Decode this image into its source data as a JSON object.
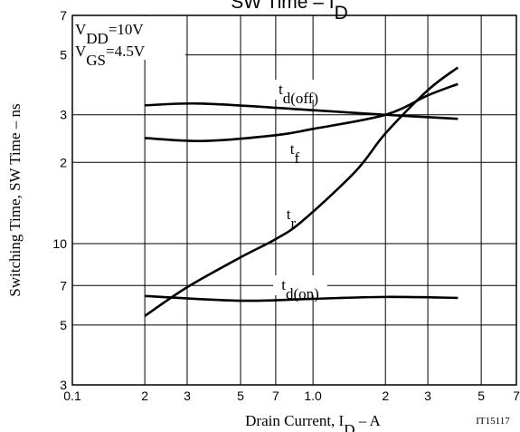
{
  "chart_data": {
    "type": "line",
    "title": [
      "SW Time  –  I",
      "D"
    ],
    "x_label": [
      "Drain Current, I",
      "D",
      "  –  A"
    ],
    "y_label": "Switching Time, SW Time  –  ns",
    "conditions": [
      [
        "V",
        "DD",
        "=10V"
      ],
      [
        "V",
        "GS",
        "=4.5V"
      ]
    ],
    "figure_id": "IT15117",
    "xscale": "log",
    "yscale": "log",
    "grid": true,
    "xlim": [
      0.1,
      7
    ],
    "ylim": [
      3,
      70
    ],
    "xticks": [
      0.1,
      {
        "value": 0.2,
        "label": "2"
      },
      {
        "value": 0.3,
        "label": "3"
      },
      {
        "value": 0.5,
        "label": "5"
      },
      {
        "value": 0.7,
        "label": "7"
      },
      {
        "value": 1,
        "label": "1.0"
      },
      2,
      3,
      5,
      7
    ],
    "yticks": [
      3,
      5,
      7,
      10,
      {
        "value": 20,
        "label": "2"
      },
      {
        "value": 30,
        "label": "3"
      },
      {
        "value": 50,
        "label": "5"
      },
      {
        "value": 70,
        "label": "7"
      }
    ],
    "series": [
      {
        "name": [
          "t",
          "d(off)"
        ],
        "color": "#000000",
        "x": [
          0.2,
          0.35,
          1,
          2,
          4
        ],
        "values": [
          32.5,
          33,
          31.2,
          30,
          29
        ]
      },
      {
        "name": [
          "t",
          "f"
        ],
        "color": "#000000",
        "x": [
          0.2,
          0.35,
          0.7,
          1,
          2,
          3,
          4
        ],
        "values": [
          24.6,
          24,
          25.2,
          26.6,
          30,
          35.4,
          39
        ]
      },
      {
        "name": [
          "t",
          "r"
        ],
        "color": "#000000",
        "x": [
          0.2,
          0.3,
          0.5,
          0.7,
          0.9,
          1.5,
          2,
          3,
          4
        ],
        "values": [
          5.4,
          6.9,
          8.9,
          10.4,
          12.1,
          18.5,
          25.6,
          37,
          44.9
        ]
      },
      {
        "name": [
          "t",
          "d(on)"
        ],
        "color": "#000000",
        "x": [
          0.2,
          0.5,
          1,
          2,
          4
        ],
        "values": [
          6.4,
          6.15,
          6.25,
          6.35,
          6.3
        ]
      }
    ]
  }
}
